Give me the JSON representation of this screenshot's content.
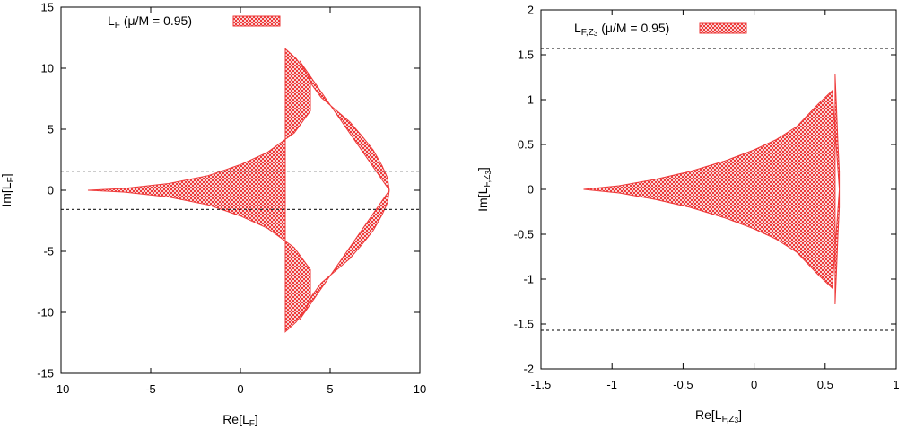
{
  "colors": {
    "fill": "#ee3a3a",
    "frame": "#000000",
    "ref_line": "#333333"
  },
  "chart_data": [
    {
      "type": "area",
      "xlabel": "Re[L_F]",
      "ylabel": "Im[L_F]",
      "xlim": [
        -10,
        10
      ],
      "ylim": [
        -15,
        15
      ],
      "x_ticks": [
        -10,
        -5,
        0,
        5,
        10
      ],
      "y_ticks": [
        -15,
        -10,
        -5,
        0,
        5,
        10,
        15
      ],
      "x_tick_labels": [
        "-10",
        "-5",
        "0",
        "5",
        "10"
      ],
      "y_tick_labels": [
        "-15",
        "-10",
        "-5",
        "0",
        "5",
        "10",
        "15"
      ],
      "legend": {
        "label": "L_F (μ/M = 0.95)",
        "position": "top-left"
      },
      "reference_lines_y": [
        1.57,
        -1.57
      ],
      "region_upper_boundary": {
        "outer": [
          [
            2.5,
            11.6
          ],
          [
            3.1,
            10.8
          ],
          [
            3.6,
            9.8
          ],
          [
            4.0,
            8.6
          ],
          [
            4.5,
            7.6
          ],
          [
            5.3,
            6.6
          ],
          [
            6.1,
            5.6
          ],
          [
            6.8,
            4.4
          ],
          [
            7.4,
            3.3
          ],
          [
            7.9,
            2.0
          ],
          [
            8.2,
            1.0
          ],
          [
            8.3,
            0
          ]
        ],
        "inner": [
          [
            2.5,
            11.6
          ],
          [
            3.3,
            10.6
          ],
          [
            3.9,
            9.0
          ],
          [
            3.9,
            6.5
          ],
          [
            3.0,
            4.7
          ],
          [
            1.5,
            3.1
          ],
          [
            0.0,
            2.1
          ],
          [
            -1.8,
            1.2
          ],
          [
            -4.0,
            0.55
          ],
          [
            -6.5,
            0.15
          ],
          [
            -8.5,
            0
          ]
        ]
      },
      "symmetric_about_x_axis": true
    },
    {
      "type": "area",
      "xlabel": "Re[L_F,Z3]",
      "ylabel": "Im[L_F,Z3]",
      "xlim": [
        -1.5,
        1
      ],
      "ylim": [
        -2,
        2
      ],
      "x_ticks": [
        -1.5,
        -1,
        -0.5,
        0,
        0.5,
        1
      ],
      "y_ticks": [
        -2,
        -1.5,
        -1,
        -0.5,
        0,
        0.5,
        1,
        1.5,
        2
      ],
      "x_tick_labels": [
        "-1.5",
        "-1",
        "-0.5",
        "0",
        "0.5",
        "1"
      ],
      "y_tick_labels": [
        "-2",
        "-1.5",
        "-1",
        "-0.5",
        "0",
        "0.5",
        "1",
        "1.5",
        "2"
      ],
      "legend": {
        "label": "L_F,Z3 (μ/M = 0.95)",
        "position": "top-left"
      },
      "reference_lines_y": [
        1.57,
        -1.57
      ],
      "region_upper_boundary": {
        "outer": [
          [
            0.57,
            1.28
          ],
          [
            0.58,
            0.9
          ],
          [
            0.59,
            0.5
          ],
          [
            0.6,
            0.2
          ],
          [
            0.6,
            0
          ]
        ],
        "inner": [
          [
            0.57,
            1.28
          ],
          [
            0.55,
            1.1
          ],
          [
            0.45,
            0.95
          ],
          [
            0.3,
            0.7
          ],
          [
            0.15,
            0.55
          ],
          [
            0.0,
            0.44
          ],
          [
            -0.2,
            0.32
          ],
          [
            -0.45,
            0.2
          ],
          [
            -0.7,
            0.11
          ],
          [
            -0.95,
            0.04
          ],
          [
            -1.2,
            0
          ]
        ]
      },
      "symmetric_about_x_axis": true
    }
  ]
}
